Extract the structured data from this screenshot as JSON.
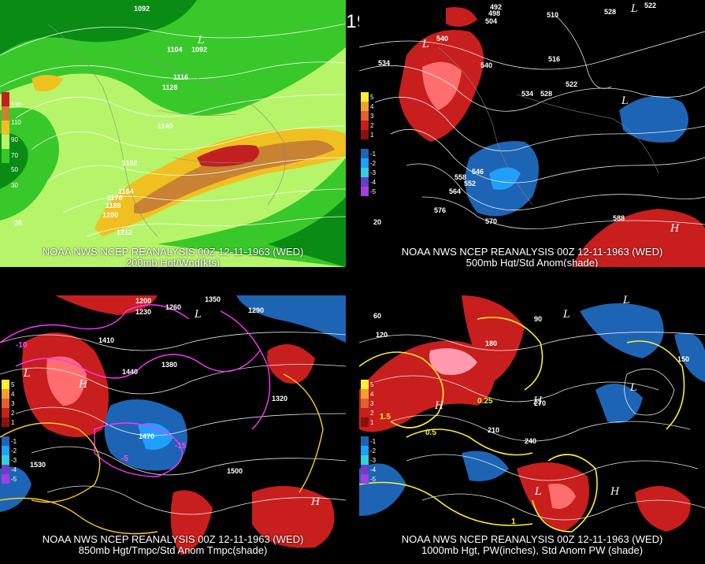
{
  "title": "00Z 12-11-1963 (WED)",
  "panels": [
    {
      "line1": "NOAA NWS NCEP REANALYSIS 00Z 12-11-1963 (WED)",
      "line2": "200mb Hgt/Wnd(kts)",
      "scale": [
        "130",
        "110",
        "90",
        "70",
        "50",
        "30"
      ],
      "contour_labels": [
        "1092",
        "1104",
        "1116",
        "1128",
        "1140",
        "1152",
        "1164",
        "1176",
        "1188",
        "1200",
        "1212"
      ],
      "extra_labels": [
        "20"
      ],
      "low_label": "L",
      "low_value": "1092"
    },
    {
      "line1": "NOAA NWS NCEP REANALYSIS 00Z 12-11-1963 (WED)",
      "line2": "500mb Hgt/Std Anom(shade)",
      "scale": [
        "5",
        "4",
        "3",
        "2",
        "1",
        "-1",
        "-2",
        "-3",
        "-4",
        "-5"
      ],
      "contour_labels": [
        "492",
        "498",
        "504",
        "510",
        "516",
        "522",
        "528",
        "534",
        "540",
        "546",
        "552",
        "558",
        "564",
        "570",
        "576",
        "588",
        "528",
        "522",
        "534",
        "540"
      ],
      "extra_labels": [
        "20"
      ],
      "low_label": "L",
      "high_label": "H"
    },
    {
      "line1": "NOAA NWS NCEP REANALYSIS 00Z 12-11-1963 (WED)",
      "line2": "850mb Hgt/Tmpc/Std Anom Tmpc(shade)",
      "scale": [
        "5",
        "4",
        "3",
        "2",
        "1",
        "-1",
        "-2",
        "-3",
        "-4",
        "-5"
      ],
      "contour_labels": [
        "1170",
        "1200",
        "1230",
        "1260",
        "1290",
        "1320",
        "1350",
        "1380",
        "1410",
        "1440",
        "1470",
        "1500",
        "1530"
      ],
      "temp_labels": [
        "-10",
        "-15",
        "-5"
      ],
      "low_label": "L",
      "high_label": "H"
    },
    {
      "line1": "NOAA NWS NCEP REANALYSIS 00Z 12-11-1963 (WED)",
      "line2": "1000mb Hgt, PW(inches), Std Anom PW (shade)",
      "scale": [
        "5",
        "4",
        "3",
        "2",
        "1",
        "-1",
        "-2",
        "-3",
        "-4",
        "-5"
      ],
      "contour_labels": [
        "30",
        "60",
        "90",
        "120",
        "150",
        "180",
        "210",
        "240",
        "270"
      ],
      "pw_labels": [
        "0.25",
        "0.5",
        "1",
        "1.5"
      ],
      "low_label": "L",
      "high_label": "H"
    }
  ],
  "colors": {
    "wind_light": "#b6f56a",
    "wind_mid": "#39c82a",
    "wind_dark": "#0a8c14",
    "wind_yellow": "#f0c020",
    "wind_orange": "#c88232",
    "wind_red": "#c02020",
    "anom_red": "#c81e1e",
    "anom_pink": "#ff6e6e",
    "anom_blue": "#1e64b4",
    "anom_cyan": "#1ea0ff",
    "contour": "#ffffff",
    "map": "#888888",
    "temp": "#ff33ff",
    "pw": "#ffee33"
  }
}
